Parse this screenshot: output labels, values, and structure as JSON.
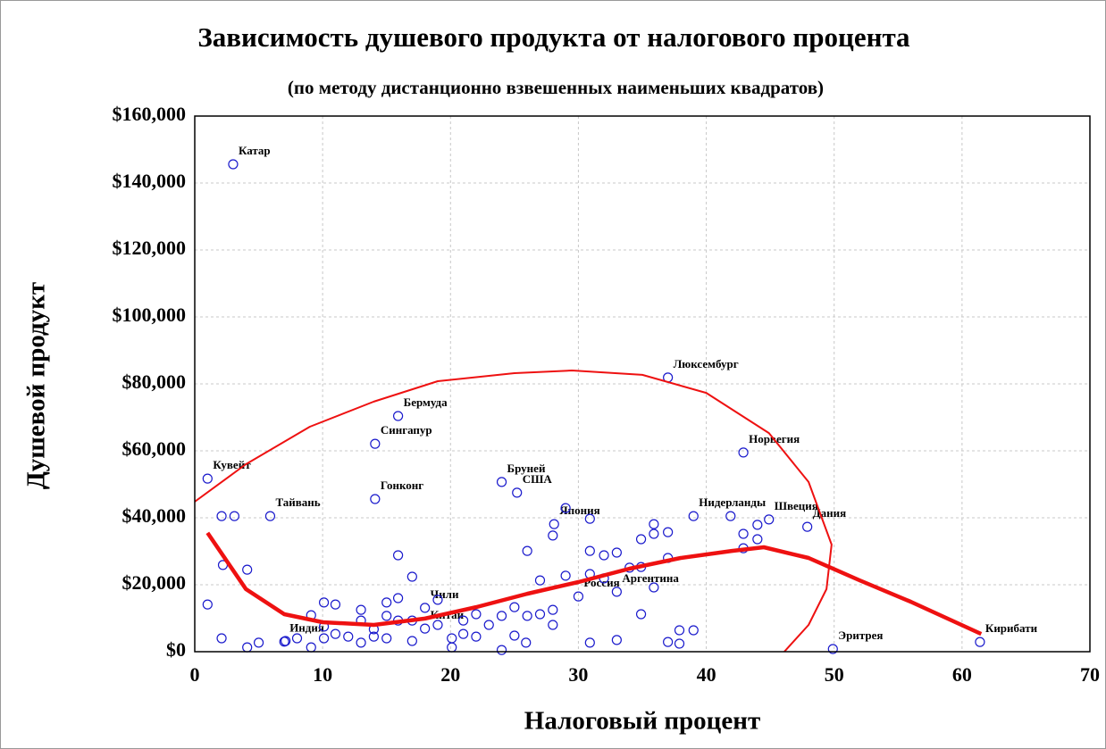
{
  "chart_data": {
    "type": "scatter",
    "title": "Зависимость душевого продукта от налогового процента",
    "subtitle": "(по методу дистанционно взвешенных наименьших квадратов)",
    "x_label": "Налоговый процент",
    "y_label": "Душевой продукт",
    "xlim": [
      0,
      70
    ],
    "ylim": [
      0,
      160000
    ],
    "xticks": [
      0,
      10,
      20,
      30,
      40,
      50,
      60,
      70
    ],
    "yticks": [
      {
        "value": 0,
        "label": "$0"
      },
      {
        "value": 20000,
        "label": "$20,000"
      },
      {
        "value": 40000,
        "label": "$40,000"
      },
      {
        "value": 60000,
        "label": "$60,000"
      },
      {
        "value": 80000,
        "label": "$80,000"
      },
      {
        "value": 100000,
        "label": "$100,000"
      },
      {
        "value": 120000,
        "label": "$120,000"
      },
      {
        "value": 140000,
        "label": "$140,000"
      },
      {
        "value": 160000,
        "label": "$160,000"
      }
    ],
    "grid": true,
    "series": [
      {
        "color": "#1a1acc",
        "x": [
          3.0,
          1.0,
          14.1,
          15.9,
          14.1,
          5.9,
          7.0,
          18.0,
          18.0,
          24.0,
          25.2,
          28.1,
          30.0,
          33.0,
          37.0,
          42.9,
          39.0,
          44.9,
          47.9,
          49.9,
          61.4,
          2.1,
          3.1,
          2.2,
          4.1,
          1.0,
          2.1,
          5.0,
          4.1,
          7.1,
          8.0,
          9.1,
          9.1,
          10.1,
          10.1,
          11.0,
          10.1,
          11.0,
          12.0,
          13.0,
          13.0,
          13.0,
          14.0,
          14.0,
          15.0,
          15.0,
          15.0,
          15.9,
          15.9,
          15.9,
          17.0,
          17.0,
          17.0,
          19.0,
          19.0,
          20.1,
          20.1,
          21.0,
          21.0,
          22.0,
          22.0,
          23.0,
          24.0,
          24.0,
          25.0,
          25.0,
          26.0,
          26.0,
          27.0,
          27.0,
          28.0,
          28.0,
          28.0,
          29.0,
          29.0,
          30.9,
          30.9,
          30.9,
          30.9,
          32.0,
          32.0,
          33.0,
          33.0,
          34.0,
          34.9,
          34.9,
          34.9,
          35.9,
          35.9,
          35.9,
          37.0,
          37.0,
          37.0,
          37.9,
          39.0,
          41.9,
          42.9,
          42.9,
          44.0,
          44.0,
          37.9,
          25.9
        ],
        "values": [
          145600,
          51700,
          62100,
          70400,
          45600,
          40500,
          3000,
          13100,
          6900,
          50700,
          47500,
          38100,
          16500,
          17900,
          81900,
          59500,
          40500,
          39500,
          37300,
          800,
          2900,
          40500,
          40500,
          25900,
          24500,
          14100,
          4000,
          2700,
          1300,
          3200,
          4000,
          10900,
          1300,
          7500,
          14700,
          14100,
          4000,
          5300,
          4500,
          12500,
          9300,
          2700,
          6700,
          4500,
          14700,
          10700,
          4000,
          28800,
          16000,
          9300,
          22400,
          9300,
          3200,
          15500,
          8000,
          4000,
          1300,
          9300,
          5300,
          11200,
          4500,
          8000,
          10700,
          500,
          13300,
          4800,
          30100,
          10700,
          21300,
          11200,
          34700,
          8000,
          12500,
          42900,
          22700,
          39700,
          30100,
          23200,
          2700,
          28800,
          21900,
          29600,
          3500,
          25100,
          33600,
          25300,
          11200,
          38100,
          35200,
          19200,
          35700,
          28000,
          2900,
          6400,
          6400,
          40500,
          35200,
          30900,
          37900,
          33600,
          2400,
          2700
        ],
        "labels": [
          "Катар",
          "Кувейт",
          "Сингапур",
          "Бермуда",
          "Гонконг",
          "Тайвань",
          "Индия",
          "Чили",
          "Китай",
          "Бруней",
          "США",
          "Япония",
          "Россия",
          "Аргентина",
          "Люксембург",
          "Норвегия",
          "Нидерланды",
          "Швеция",
          "Дания",
          "Эритрея",
          "Кирибати",
          null,
          null,
          null,
          null,
          null,
          null,
          null,
          null,
          null,
          null,
          null,
          null,
          null,
          null,
          null,
          null,
          null,
          null,
          null,
          null,
          null,
          null,
          null,
          null,
          null,
          null,
          null,
          null,
          null,
          null,
          null,
          null,
          null,
          null,
          null,
          null,
          null,
          null,
          null,
          null,
          null,
          null,
          null,
          null,
          null,
          null,
          null,
          null,
          null,
          null,
          null,
          null,
          null,
          null,
          null,
          null,
          null,
          null,
          null,
          null,
          null,
          null,
          null,
          null,
          null,
          null,
          null,
          null,
          null,
          null,
          null,
          null,
          null,
          null,
          null,
          null
        ]
      }
    ],
    "lines": [
      {
        "color": "#ee1111",
        "linewidth": 4.5,
        "x": [
          1.0,
          4.0,
          7.0,
          10.0,
          14.0,
          18.0,
          22.0,
          26.0,
          30.0,
          34.0,
          38.0,
          42.0,
          44.5,
          48.0,
          52.0,
          56.0,
          61.5
        ],
        "values": [
          35500,
          18700,
          11200,
          8800,
          8000,
          9900,
          13300,
          17300,
          20800,
          24800,
          28000,
          30100,
          31200,
          28000,
          21300,
          14900,
          5300
        ]
      },
      {
        "color": "#ee1111",
        "linewidth": 2,
        "x": [
          0,
          4.0,
          9.0,
          14.0,
          19.0,
          25.0,
          29.5,
          35.0,
          40.0,
          44.9,
          48.0,
          49.8,
          49.4,
          48.0,
          46.1
        ],
        "values": [
          44800,
          56000,
          67200,
          74700,
          80800,
          83200,
          84000,
          82700,
          77300,
          65300,
          50700,
          32000,
          18700,
          8000,
          0
        ]
      }
    ]
  }
}
